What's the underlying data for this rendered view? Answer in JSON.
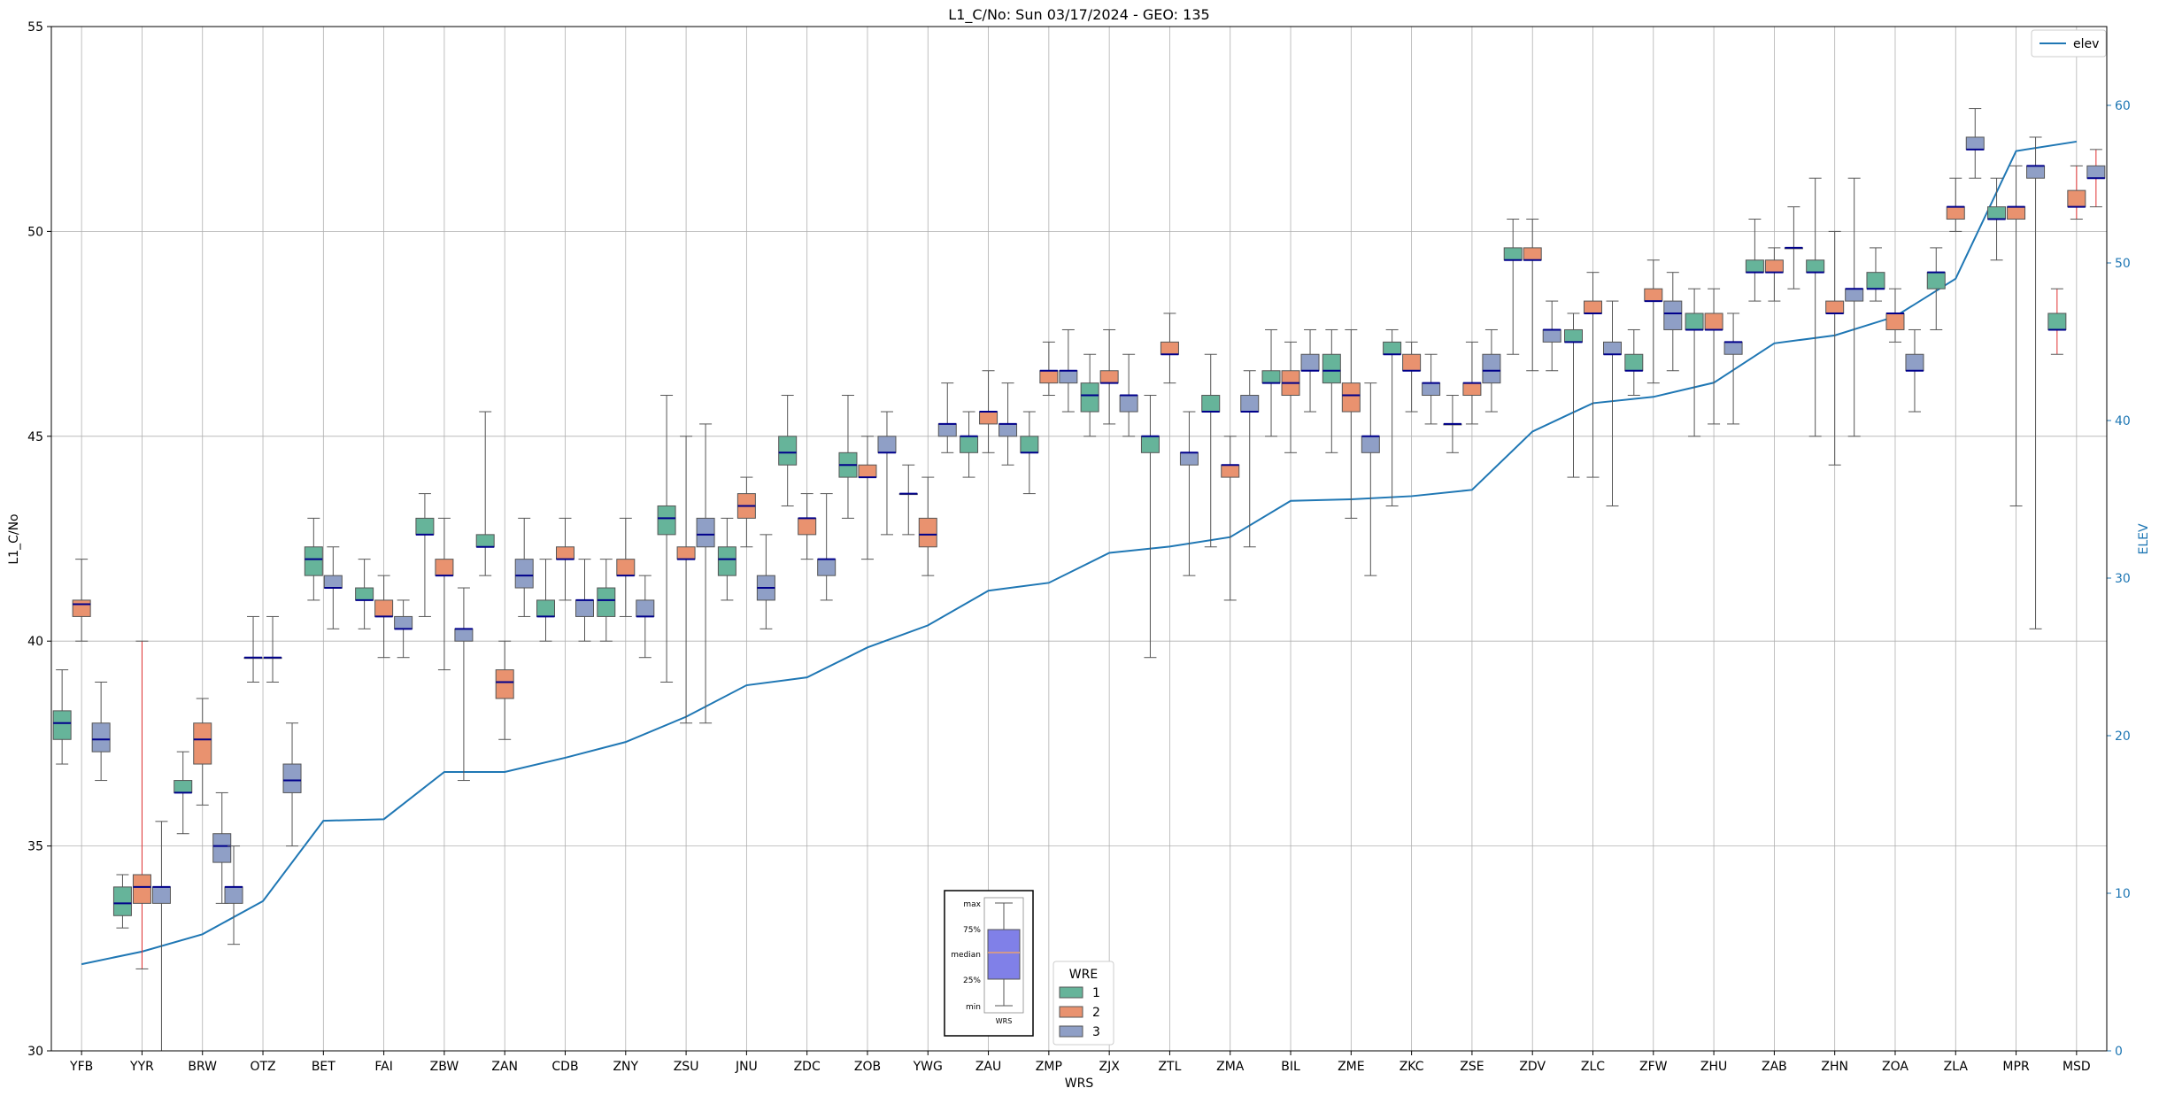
{
  "chart_data": {
    "type": "box",
    "title": "L1_C/No: Sun 03/17/2024 - GEO: 135",
    "xlabel": "WRS",
    "ylabel": "L1_C/No",
    "y2label": "ELEV",
    "ylim": [
      30,
      55
    ],
    "y2lim": [
      0,
      65
    ],
    "yticks": [
      30,
      35,
      40,
      45,
      50,
      55
    ],
    "y2ticks": [
      0,
      10,
      20,
      30,
      40,
      50,
      60
    ],
    "grid": true,
    "categories": [
      "YFB",
      "YYR",
      "BRW",
      "OTZ",
      "BET",
      "FAI",
      "ZBW",
      "ZAN",
      "CDB",
      "ZNY",
      "ZSU",
      "JNU",
      "ZDC",
      "ZOB",
      "YWG",
      "ZAU",
      "ZMP",
      "ZJX",
      "ZTL",
      "ZMA",
      "BIL",
      "ZME",
      "ZKC",
      "ZSE",
      "ZDV",
      "ZLC",
      "ZFW",
      "ZHU",
      "ZAB",
      "ZHN",
      "ZOA",
      "ZLA",
      "MPR",
      "MSD"
    ],
    "colors": {
      "1": "#66b49a",
      "2": "#e9926f",
      "3": "#8f9fc6",
      "elev": "#1f77b4",
      "median": "#00008b",
      "whisker": "#555555",
      "red_whisker": "#e03030"
    },
    "boxes": [
      {
        "cat": "YFB",
        "wre": 1,
        "min": 37.0,
        "q1": 37.6,
        "med": 38.0,
        "q3": 38.3,
        "max": 39.3
      },
      {
        "cat": "YFB",
        "wre": 2,
        "min": 40.0,
        "q1": 40.6,
        "med": 40.9,
        "q3": 41.0,
        "max": 42.0
      },
      {
        "cat": "YFB",
        "wre": 3,
        "min": 36.6,
        "q1": 37.3,
        "med": 37.6,
        "q3": 38.0,
        "max": 39.0
      },
      {
        "cat": "YYR",
        "wre": 1,
        "min": 33.0,
        "q1": 33.3,
        "med": 33.6,
        "q3": 34.0,
        "max": 34.3
      },
      {
        "cat": "YYR",
        "wre": 2,
        "min": 32.0,
        "q1": 33.6,
        "med": 34.0,
        "q3": 34.3,
        "max": 40.0,
        "red": true
      },
      {
        "cat": "YYR",
        "wre": 3,
        "min": 30.0,
        "q1": 33.6,
        "med": 34.0,
        "q3": 34.0,
        "max": 35.6
      },
      {
        "cat": "BRW",
        "wre": 1,
        "min": 35.3,
        "q1": 36.3,
        "med": 36.3,
        "q3": 36.6,
        "max": 37.3
      },
      {
        "cat": "BRW",
        "wre": 2,
        "min": 36.0,
        "q1": 37.0,
        "med": 37.6,
        "q3": 38.0,
        "max": 38.6
      },
      {
        "cat": "BRW",
        "wre": 3,
        "min": 33.6,
        "q1": 34.6,
        "med": 35.0,
        "q3": 35.3,
        "max": 36.3
      },
      {
        "cat": "OTZ",
        "wre": 3,
        "min": 32.6,
        "q1": 33.6,
        "med": 34.0,
        "q3": 34.0,
        "max": 35.0
      },
      {
        "cat": "OTZ",
        "wre": 1,
        "min": 39.0,
        "q1": 39.6,
        "med": 39.6,
        "q3": 39.6,
        "max": 40.6
      },
      {
        "cat": "OTZ",
        "wre": 2,
        "min": 39.0,
        "q1": 39.6,
        "med": 39.6,
        "q3": 39.6,
        "max": 40.6
      },
      {
        "cat": "OTZ",
        "wre": 3,
        "min": 35.0,
        "q1": 36.3,
        "med": 36.6,
        "q3": 37.0,
        "max": 38.0
      },
      {
        "cat": "BET",
        "wre": 1,
        "min": 41.0,
        "q1": 41.6,
        "med": 42.0,
        "q3": 42.3,
        "max": 43.0
      },
      {
        "cat": "BET",
        "wre": 3,
        "min": 40.3,
        "q1": 41.3,
        "med": 41.3,
        "q3": 41.6,
        "max": 42.3
      },
      {
        "cat": "FAI",
        "wre": 1,
        "min": 40.3,
        "q1": 41.0,
        "med": 41.0,
        "q3": 41.3,
        "max": 42.0
      },
      {
        "cat": "FAI",
        "wre": 2,
        "min": 39.6,
        "q1": 40.6,
        "med": 40.6,
        "q3": 41.0,
        "max": 41.6
      },
      {
        "cat": "FAI",
        "wre": 3,
        "min": 39.6,
        "q1": 40.3,
        "med": 40.3,
        "q3": 40.6,
        "max": 41.0
      },
      {
        "cat": "ZBW",
        "wre": 1,
        "min": 40.6,
        "q1": 42.6,
        "med": 42.6,
        "q3": 43.0,
        "max": 43.6
      },
      {
        "cat": "ZBW",
        "wre": 2,
        "min": 39.3,
        "q1": 41.6,
        "med": 41.6,
        "q3": 42.0,
        "max": 43.0
      },
      {
        "cat": "ZBW",
        "wre": 3,
        "min": 36.6,
        "q1": 40.0,
        "med": 40.3,
        "q3": 40.3,
        "max": 41.3
      },
      {
        "cat": "ZAN",
        "wre": 1,
        "min": 41.6,
        "q1": 42.3,
        "med": 42.3,
        "q3": 42.6,
        "max": 45.6
      },
      {
        "cat": "ZAN",
        "wre": 2,
        "min": 37.6,
        "q1": 38.6,
        "med": 39.0,
        "q3": 39.3,
        "max": 40.0
      },
      {
        "cat": "ZAN",
        "wre": 3,
        "min": 40.6,
        "q1": 41.3,
        "med": 41.6,
        "q3": 42.0,
        "max": 43.0
      },
      {
        "cat": "CDB",
        "wre": 1,
        "min": 40.0,
        "q1": 40.6,
        "med": 40.6,
        "q3": 41.0,
        "max": 42.0
      },
      {
        "cat": "CDB",
        "wre": 2,
        "min": 41.0,
        "q1": 42.0,
        "med": 42.0,
        "q3": 42.3,
        "max": 43.0
      },
      {
        "cat": "CDB",
        "wre": 3,
        "min": 40.0,
        "q1": 40.6,
        "med": 41.0,
        "q3": 41.0,
        "max": 42.0
      },
      {
        "cat": "ZNY",
        "wre": 1,
        "min": 40.0,
        "q1": 40.6,
        "med": 41.0,
        "q3": 41.3,
        "max": 42.0
      },
      {
        "cat": "ZNY",
        "wre": 2,
        "min": 40.6,
        "q1": 41.6,
        "med": 41.6,
        "q3": 42.0,
        "max": 43.0
      },
      {
        "cat": "ZNY",
        "wre": 3,
        "min": 39.6,
        "q1": 40.6,
        "med": 40.6,
        "q3": 41.0,
        "max": 41.6
      },
      {
        "cat": "ZSU",
        "wre": 1,
        "min": 39.0,
        "q1": 42.6,
        "med": 43.0,
        "q3": 43.3,
        "max": 46.0
      },
      {
        "cat": "ZSU",
        "wre": 2,
        "min": 38.0,
        "q1": 42.0,
        "med": 42.0,
        "q3": 42.3,
        "max": 45.0
      },
      {
        "cat": "ZSU",
        "wre": 3,
        "min": 38.0,
        "q1": 42.3,
        "med": 42.6,
        "q3": 43.0,
        "max": 45.3
      },
      {
        "cat": "JNU",
        "wre": 1,
        "min": 41.0,
        "q1": 41.6,
        "med": 42.0,
        "q3": 42.3,
        "max": 43.0
      },
      {
        "cat": "JNU",
        "wre": 2,
        "min": 42.3,
        "q1": 43.0,
        "med": 43.3,
        "q3": 43.6,
        "max": 44.0
      },
      {
        "cat": "JNU",
        "wre": 3,
        "min": 40.3,
        "q1": 41.0,
        "med": 41.3,
        "q3": 41.6,
        "max": 42.6
      },
      {
        "cat": "ZDC",
        "wre": 1,
        "min": 43.3,
        "q1": 44.3,
        "med": 44.6,
        "q3": 45.0,
        "max": 46.0
      },
      {
        "cat": "ZDC",
        "wre": 2,
        "min": 42.0,
        "q1": 42.6,
        "med": 43.0,
        "q3": 43.0,
        "max": 43.6
      },
      {
        "cat": "ZDC",
        "wre": 3,
        "min": 41.0,
        "q1": 41.6,
        "med": 42.0,
        "q3": 42.0,
        "max": 43.6
      },
      {
        "cat": "ZOB",
        "wre": 1,
        "min": 43.0,
        "q1": 44.0,
        "med": 44.3,
        "q3": 44.6,
        "max": 46.0
      },
      {
        "cat": "ZOB",
        "wre": 2,
        "min": 42.0,
        "q1": 44.0,
        "med": 44.0,
        "q3": 44.3,
        "max": 45.0
      },
      {
        "cat": "ZOB",
        "wre": 3,
        "min": 42.6,
        "q1": 44.6,
        "med": 44.6,
        "q3": 45.0,
        "max": 45.6
      },
      {
        "cat": "YWG",
        "wre": 1,
        "min": 42.6,
        "q1": 43.6,
        "med": 43.6,
        "q3": 43.6,
        "max": 44.3
      },
      {
        "cat": "YWG",
        "wre": 2,
        "min": 41.6,
        "q1": 42.3,
        "med": 42.6,
        "q3": 43.0,
        "max": 44.0
      },
      {
        "cat": "YWG",
        "wre": 3,
        "min": 44.6,
        "q1": 45.0,
        "med": 45.3,
        "q3": 45.3,
        "max": 46.3
      },
      {
        "cat": "ZAU",
        "wre": 1,
        "min": 44.0,
        "q1": 44.6,
        "med": 45.0,
        "q3": 45.0,
        "max": 45.6
      },
      {
        "cat": "ZAU",
        "wre": 2,
        "min": 44.6,
        "q1": 45.3,
        "med": 45.6,
        "q3": 45.6,
        "max": 46.6
      },
      {
        "cat": "ZAU",
        "wre": 3,
        "min": 44.3,
        "q1": 45.0,
        "med": 45.3,
        "q3": 45.3,
        "max": 46.3
      },
      {
        "cat": "ZMP",
        "wre": 1,
        "min": 43.6,
        "q1": 44.6,
        "med": 44.6,
        "q3": 45.0,
        "max": 45.6
      },
      {
        "cat": "ZMP",
        "wre": 2,
        "min": 46.0,
        "q1": 46.3,
        "med": 46.6,
        "q3": 46.6,
        "max": 47.3
      },
      {
        "cat": "ZMP",
        "wre": 3,
        "min": 45.6,
        "q1": 46.3,
        "med": 46.6,
        "q3": 46.6,
        "max": 47.6
      },
      {
        "cat": "ZJX",
        "wre": 1,
        "min": 45.0,
        "q1": 45.6,
        "med": 46.0,
        "q3": 46.3,
        "max": 47.0
      },
      {
        "cat": "ZJX",
        "wre": 2,
        "min": 45.3,
        "q1": 46.3,
        "med": 46.3,
        "q3": 46.6,
        "max": 47.6
      },
      {
        "cat": "ZJX",
        "wre": 3,
        "min": 45.0,
        "q1": 45.6,
        "med": 46.0,
        "q3": 46.0,
        "max": 47.0
      },
      {
        "cat": "ZTL",
        "wre": 1,
        "min": 39.6,
        "q1": 44.6,
        "med": 45.0,
        "q3": 45.0,
        "max": 46.0
      },
      {
        "cat": "ZTL",
        "wre": 2,
        "min": 46.3,
        "q1": 47.0,
        "med": 47.0,
        "q3": 47.3,
        "max": 48.0
      },
      {
        "cat": "ZTL",
        "wre": 3,
        "min": 41.6,
        "q1": 44.3,
        "med": 44.6,
        "q3": 44.6,
        "max": 45.6
      },
      {
        "cat": "ZMA",
        "wre": 1,
        "min": 42.3,
        "q1": 45.6,
        "med": 45.6,
        "q3": 46.0,
        "max": 47.0
      },
      {
        "cat": "ZMA",
        "wre": 2,
        "min": 41.0,
        "q1": 44.0,
        "med": 44.3,
        "q3": 44.3,
        "max": 45.0
      },
      {
        "cat": "ZMA",
        "wre": 3,
        "min": 42.3,
        "q1": 45.6,
        "med": 45.6,
        "q3": 46.0,
        "max": 46.6
      },
      {
        "cat": "BIL",
        "wre": 1,
        "min": 45.0,
        "q1": 46.3,
        "med": 46.3,
        "q3": 46.6,
        "max": 47.6
      },
      {
        "cat": "BIL",
        "wre": 2,
        "min": 44.6,
        "q1": 46.0,
        "med": 46.3,
        "q3": 46.6,
        "max": 47.3
      },
      {
        "cat": "BIL",
        "wre": 3,
        "min": 45.6,
        "q1": 46.6,
        "med": 46.6,
        "q3": 47.0,
        "max": 47.6
      },
      {
        "cat": "ZME",
        "wre": 1,
        "min": 44.6,
        "q1": 46.3,
        "med": 46.6,
        "q3": 47.0,
        "max": 47.6
      },
      {
        "cat": "ZME",
        "wre": 2,
        "min": 43.0,
        "q1": 45.6,
        "med": 46.0,
        "q3": 46.3,
        "max": 47.6
      },
      {
        "cat": "ZME",
        "wre": 3,
        "min": 41.6,
        "q1": 44.6,
        "med": 45.0,
        "q3": 45.0,
        "max": 46.3
      },
      {
        "cat": "ZKC",
        "wre": 1,
        "min": 43.3,
        "q1": 47.0,
        "med": 47.0,
        "q3": 47.3,
        "max": 47.6
      },
      {
        "cat": "ZKC",
        "wre": 2,
        "min": 45.6,
        "q1": 46.6,
        "med": 46.6,
        "q3": 47.0,
        "max": 47.3
      },
      {
        "cat": "ZKC",
        "wre": 3,
        "min": 45.3,
        "q1": 46.0,
        "med": 46.3,
        "q3": 46.3,
        "max": 47.0
      },
      {
        "cat": "ZSE",
        "wre": 1,
        "min": 44.6,
        "q1": 45.3,
        "med": 45.3,
        "q3": 45.3,
        "max": 46.0
      },
      {
        "cat": "ZSE",
        "wre": 2,
        "min": 45.3,
        "q1": 46.0,
        "med": 46.3,
        "q3": 46.3,
        "max": 47.3
      },
      {
        "cat": "ZSE",
        "wre": 3,
        "min": 45.6,
        "q1": 46.3,
        "med": 46.6,
        "q3": 47.0,
        "max": 47.6
      },
      {
        "cat": "ZDV",
        "wre": 1,
        "min": 47.0,
        "q1": 49.3,
        "med": 49.3,
        "q3": 49.6,
        "max": 50.3
      },
      {
        "cat": "ZDV",
        "wre": 2,
        "min": 46.6,
        "q1": 49.3,
        "med": 49.3,
        "q3": 49.6,
        "max": 50.3
      },
      {
        "cat": "ZDV",
        "wre": 3,
        "min": 46.6,
        "q1": 47.3,
        "med": 47.6,
        "q3": 47.6,
        "max": 48.3
      },
      {
        "cat": "ZLC",
        "wre": 1,
        "min": 44.0,
        "q1": 47.3,
        "med": 47.3,
        "q3": 47.6,
        "max": 48.0
      },
      {
        "cat": "ZLC",
        "wre": 2,
        "min": 44.0,
        "q1": 48.0,
        "med": 48.0,
        "q3": 48.3,
        "max": 49.0
      },
      {
        "cat": "ZLC",
        "wre": 3,
        "min": 43.3,
        "q1": 47.0,
        "med": 47.0,
        "q3": 47.3,
        "max": 48.3
      },
      {
        "cat": "ZFW",
        "wre": 1,
        "min": 46.0,
        "q1": 46.6,
        "med": 46.6,
        "q3": 47.0,
        "max": 47.6
      },
      {
        "cat": "ZFW",
        "wre": 2,
        "min": 46.3,
        "q1": 48.3,
        "med": 48.3,
        "q3": 48.6,
        "max": 49.3
      },
      {
        "cat": "ZFW",
        "wre": 3,
        "min": 46.6,
        "q1": 47.6,
        "med": 48.0,
        "q3": 48.3,
        "max": 49.0
      },
      {
        "cat": "ZHU",
        "wre": 1,
        "min": 45.0,
        "q1": 47.6,
        "med": 47.6,
        "q3": 48.0,
        "max": 48.6
      },
      {
        "cat": "ZHU",
        "wre": 2,
        "min": 45.3,
        "q1": 47.6,
        "med": 47.6,
        "q3": 48.0,
        "max": 48.6
      },
      {
        "cat": "ZHU",
        "wre": 3,
        "min": 45.3,
        "q1": 47.0,
        "med": 47.3,
        "q3": 47.3,
        "max": 48.0
      },
      {
        "cat": "ZAB",
        "wre": 1,
        "min": 48.3,
        "q1": 49.0,
        "med": 49.0,
        "q3": 49.3,
        "max": 50.3
      },
      {
        "cat": "ZAB",
        "wre": 2,
        "min": 48.3,
        "q1": 49.0,
        "med": 49.0,
        "q3": 49.3,
        "max": 49.6
      },
      {
        "cat": "ZAB",
        "wre": 3,
        "min": 48.6,
        "q1": 49.6,
        "med": 49.6,
        "q3": 49.6,
        "max": 50.6
      },
      {
        "cat": "ZHN",
        "wre": 1,
        "min": 45.0,
        "q1": 49.0,
        "med": 49.0,
        "q3": 49.3,
        "max": 51.3
      },
      {
        "cat": "ZHN",
        "wre": 2,
        "min": 44.3,
        "q1": 48.0,
        "med": 48.0,
        "q3": 48.3,
        "max": 50.0
      },
      {
        "cat": "ZHN",
        "wre": 3,
        "min": 45.0,
        "q1": 48.3,
        "med": 48.6,
        "q3": 48.6,
        "max": 51.3
      },
      {
        "cat": "ZOA",
        "wre": 1,
        "min": 48.3,
        "q1": 48.6,
        "med": 48.6,
        "q3": 49.0,
        "max": 49.6
      },
      {
        "cat": "ZOA",
        "wre": 2,
        "min": 47.3,
        "q1": 47.6,
        "med": 48.0,
        "q3": 48.0,
        "max": 48.6
      },
      {
        "cat": "ZOA",
        "wre": 3,
        "min": 45.6,
        "q1": 46.6,
        "med": 46.6,
        "q3": 47.0,
        "max": 47.6
      },
      {
        "cat": "ZLA",
        "wre": 1,
        "min": 47.6,
        "q1": 48.6,
        "med": 49.0,
        "q3": 49.0,
        "max": 49.6
      },
      {
        "cat": "ZLA",
        "wre": 2,
        "min": 50.0,
        "q1": 50.3,
        "med": 50.6,
        "q3": 50.6,
        "max": 51.3
      },
      {
        "cat": "ZLA",
        "wre": 3,
        "min": 51.3,
        "q1": 52.0,
        "med": 52.0,
        "q3": 52.3,
        "max": 53.0
      },
      {
        "cat": "MPR",
        "wre": 1,
        "min": 49.3,
        "q1": 50.3,
        "med": 50.3,
        "q3": 50.6,
        "max": 51.3
      },
      {
        "cat": "MPR",
        "wre": 2,
        "min": 43.3,
        "q1": 50.3,
        "med": 50.6,
        "q3": 50.6,
        "max": 51.6
      },
      {
        "cat": "MPR",
        "wre": 3,
        "min": 40.3,
        "q1": 51.3,
        "med": 51.6,
        "q3": 51.6,
        "max": 52.3
      },
      {
        "cat": "MSD",
        "wre": 1,
        "min": 47.0,
        "q1": 47.6,
        "med": 47.6,
        "q3": 48.0,
        "max": 48.6,
        "red": true
      },
      {
        "cat": "MSD",
        "wre": 2,
        "min": 50.3,
        "q1": 50.6,
        "med": 50.6,
        "q3": 51.0,
        "max": 51.6,
        "red": true
      },
      {
        "cat": "MSD",
        "wre": 3,
        "min": 50.6,
        "q1": 51.3,
        "med": 51.3,
        "q3": 51.6,
        "max": 52.0,
        "red": true
      }
    ],
    "elev_series": {
      "name": "elev",
      "values": [
        5.5,
        6.3,
        7.4,
        9.5,
        14.6,
        14.7,
        17.7,
        17.7,
        18.6,
        19.6,
        21.2,
        23.2,
        23.7,
        25.6,
        27.0,
        29.2,
        29.7,
        31.6,
        32.0,
        32.6,
        34.9,
        35.0,
        35.2,
        35.6,
        39.3,
        41.1,
        41.5,
        42.4,
        44.9,
        45.4,
        46.6,
        49.0,
        57.1,
        57.7
      ]
    },
    "legend_top_right": "elev",
    "legend_wre": {
      "title": "WRE",
      "entries": [
        "1",
        "2",
        "3"
      ]
    },
    "inset_key": {
      "labels": [
        "max",
        "75%",
        "median",
        "25%",
        "min"
      ],
      "xlabel": "WRS"
    }
  }
}
